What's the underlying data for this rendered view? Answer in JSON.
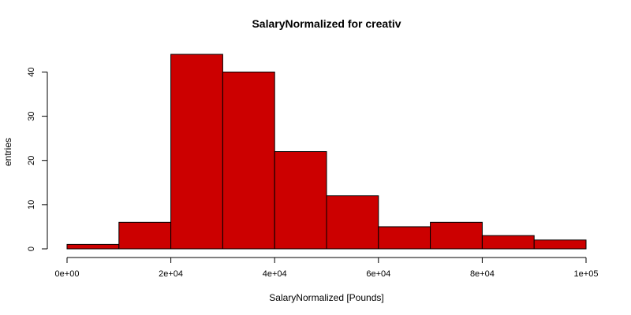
{
  "chart_data": {
    "type": "bar",
    "title": "SalaryNormalized for creativ",
    "xlabel": "SalaryNormalized [Pounds]",
    "ylabel": "entries",
    "bin_edges": [
      0,
      10000,
      20000,
      30000,
      40000,
      50000,
      60000,
      70000,
      80000,
      90000,
      100000
    ],
    "values": [
      1,
      6,
      44,
      40,
      22,
      12,
      5,
      6,
      3,
      2
    ],
    "xlim": [
      0,
      100000
    ],
    "ylim": [
      0,
      44
    ],
    "x_ticks": [
      0,
      20000,
      40000,
      60000,
      80000,
      100000
    ],
    "x_tick_labels": [
      "0e+00",
      "2e+04",
      "4e+04",
      "6e+04",
      "8e+04",
      "1e+05"
    ],
    "y_ticks": [
      0,
      10,
      20,
      30,
      40
    ],
    "y_tick_labels": [
      "0",
      "10",
      "20",
      "30",
      "40"
    ],
    "bar_color": "#cc0000",
    "grid": false,
    "legend": "none"
  }
}
